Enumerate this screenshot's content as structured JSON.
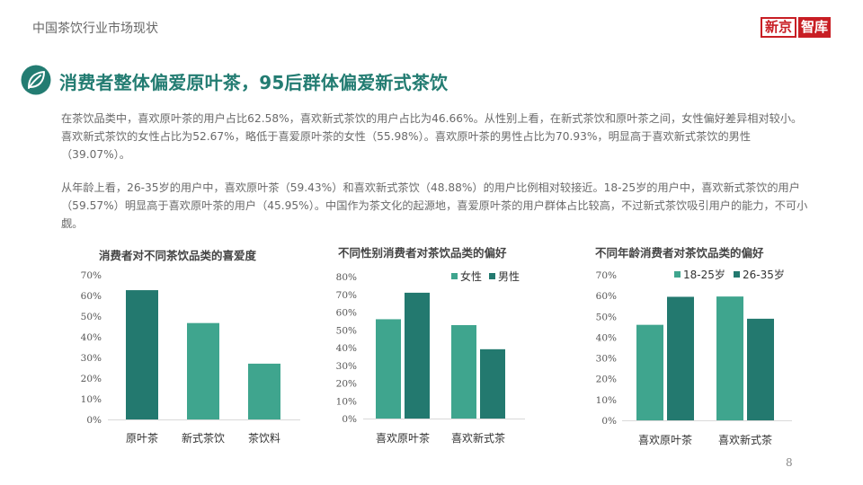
{
  "header": {
    "section_label": "中国茶饮行业市场现状",
    "logo_part1": "新京",
    "logo_part2": "智库"
  },
  "headline": "消费者整体偏爱原叶茶，95后群体偏爱新式茶饮",
  "paragraphs": [
    "在茶饮品类中，喜欢原叶茶的用户占比62.58%，喜欢新式茶饮的用户占比为46.66%。从性别上看，在新式茶饮和原叶茶之间，女性偏好差异相对较小。喜欢新式茶饮的女性占比为52.67%，略低于喜爱原叶茶的女性（55.98%）。喜欢原叶茶的男性占比为70.93%，明显高于喜欢新式茶饮的男性（39.07%）。",
    "从年龄上看，26-35岁的用户中，喜欢原叶茶（59.43%）和喜欢新式茶饮（48.88%）的用户比例相对较接近。18-25岁的用户中，喜欢新式茶饮的用户（59.57%）明显高于喜欢原叶茶的用户（45.95%）。中国作为茶文化的起源地，喜爱原叶茶的用户群体占比较高，不过新式茶饮吸引用户的能力，不可小觑。"
  ],
  "colors": {
    "accent": "#237c72",
    "light": "#3fa58e",
    "dark": "#23796f"
  },
  "chart_data": [
    {
      "type": "bar",
      "title": "消费者对不同茶饮品类的喜爱度",
      "categories": [
        "原叶茶",
        "新式茶饮",
        "茶饮料"
      ],
      "series": [
        {
          "values": [
            62.58,
            46.66,
            27
          ]
        }
      ],
      "ylim": [
        0,
        70
      ],
      "yticks": [
        "0%",
        "10%",
        "20%",
        "30%",
        "40%",
        "50%",
        "60%",
        "70%"
      ],
      "grid": false
    },
    {
      "type": "bar",
      "title": "不同性别消费者对茶饮品类的偏好",
      "categories": [
        "喜欢原叶茶",
        "喜欢新式茶"
      ],
      "series": [
        {
          "name": "女性",
          "values": [
            55.98,
            52.67
          ]
        },
        {
          "name": "男性",
          "values": [
            70.93,
            39.07
          ]
        }
      ],
      "ylim": [
        0,
        80
      ],
      "yticks": [
        "0%",
        "10%",
        "20%",
        "30%",
        "40%",
        "50%",
        "60%",
        "70%",
        "80%"
      ],
      "legend": "top",
      "grid": false
    },
    {
      "type": "bar",
      "title": "不同年龄消费者对茶饮品类的偏好",
      "categories": [
        "喜欢原叶茶",
        "喜欢新式茶"
      ],
      "series": [
        {
          "name": "18-25岁",
          "values": [
            45.95,
            59.57
          ]
        },
        {
          "name": "26-35岁",
          "values": [
            59.43,
            48.88
          ]
        }
      ],
      "ylim": [
        0,
        70
      ],
      "yticks": [
        "0%",
        "10%",
        "20%",
        "30%",
        "40%",
        "50%",
        "60%",
        "70%"
      ],
      "legend": "top",
      "grid": false
    }
  ],
  "page_number": "8"
}
